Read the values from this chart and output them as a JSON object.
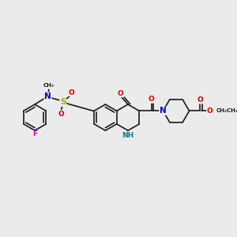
{
  "background_color": "#ebebeb",
  "bond_color": "#1a1a1a",
  "bond_width": 1.2,
  "atom_colors": {
    "N": "#0000cc",
    "O": "#cc0000",
    "F": "#cc00cc",
    "S": "#aaaa00",
    "NH": "#008080"
  },
  "font_size": 6.5,
  "fig_size": [
    3.0,
    3.0
  ],
  "dpi": 100
}
